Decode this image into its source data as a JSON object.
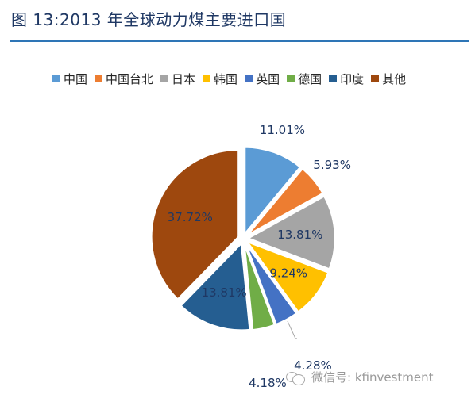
{
  "title": "图 13:2013 年全球动力煤主要进口国",
  "watermark": "微信号: kfinvestment",
  "chart_data": {
    "type": "pie",
    "title": "",
    "legend_position": "top",
    "start_angle_deg": 0,
    "direction": "clockwise",
    "slices": [
      {
        "name": "中国",
        "value": 11.01,
        "label": "11.01%",
        "color": "#5b9bd5",
        "label_pos": "outside"
      },
      {
        "name": "中国台北",
        "value": 5.93,
        "label": "5.93%",
        "color": "#ed7d31",
        "label_pos": "outside"
      },
      {
        "name": "日本",
        "value": 13.81,
        "label": "13.81%",
        "color": "#a5a5a5",
        "label_pos": "inside"
      },
      {
        "name": "韩国",
        "value": 9.24,
        "label": "9.24%",
        "color": "#ffc000",
        "label_pos": "inside"
      },
      {
        "name": "英国",
        "value": 4.28,
        "label": "4.28%",
        "color": "#4472c4",
        "label_pos": "outside-leader"
      },
      {
        "name": "德国",
        "value": 4.18,
        "label": "4.18%",
        "color": "#70ad47",
        "label_pos": "outside"
      },
      {
        "name": "印度",
        "value": 13.81,
        "label": "13.81%",
        "color": "#255e91",
        "label_pos": "inside"
      },
      {
        "name": "其他",
        "value": 37.72,
        "label": "37.72%",
        "color": "#9e480e",
        "label_pos": "inside"
      }
    ]
  }
}
